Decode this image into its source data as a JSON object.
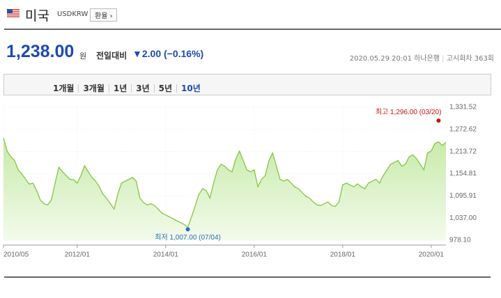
{
  "header": {
    "name": "미국",
    "code": "USDKRW",
    "button": "환율"
  },
  "quote": {
    "price": "1,238.00",
    "unit": "원",
    "change_label": "전일대비",
    "change": "▼2.00 (−0.16%)"
  },
  "meta": {
    "datetime": "2020.05.29 20:01",
    "bank": "하나은행",
    "round": "고시회차 363회"
  },
  "tabs": [
    "1개월",
    "3개월",
    "1년",
    "3년",
    "5년",
    "10년"
  ],
  "selected_tab": 5,
  "chart_data": {
    "type": "area",
    "x": [
      "2010/05",
      "2010/06",
      "2010/07",
      "2010/08",
      "2010/09",
      "2010/10",
      "2010/11",
      "2010/12",
      "2011/01",
      "2011/02",
      "2011/03",
      "2011/04",
      "2011/05",
      "2011/06",
      "2011/07",
      "2011/08",
      "2011/09",
      "2011/10",
      "2011/11",
      "2011/12",
      "2012/01",
      "2012/02",
      "2012/03",
      "2012/04",
      "2012/05",
      "2012/06",
      "2012/07",
      "2012/08",
      "2012/09",
      "2012/10",
      "2012/11",
      "2012/12",
      "2013/01",
      "2013/02",
      "2013/03",
      "2013/04",
      "2013/05",
      "2013/06",
      "2013/07",
      "2013/08",
      "2013/09",
      "2013/10",
      "2013/11",
      "2013/12",
      "2014/01",
      "2014/02",
      "2014/03",
      "2014/04",
      "2014/05",
      "2014/06",
      "2014/07",
      "2014/08",
      "2014/09",
      "2014/10",
      "2014/11",
      "2014/12",
      "2015/01",
      "2015/02",
      "2015/03",
      "2015/04",
      "2015/05",
      "2015/06",
      "2015/07",
      "2015/08",
      "2015/09",
      "2015/10",
      "2015/11",
      "2015/12",
      "2016/01",
      "2016/02",
      "2016/03",
      "2016/04",
      "2016/05",
      "2016/06",
      "2016/07",
      "2016/08",
      "2016/09",
      "2016/10",
      "2016/11",
      "2016/12",
      "2017/01",
      "2017/02",
      "2017/03",
      "2017/04",
      "2017/05",
      "2017/06",
      "2017/07",
      "2017/08",
      "2017/09",
      "2017/10",
      "2017/11",
      "2017/12",
      "2018/01",
      "2018/02",
      "2018/03",
      "2018/04",
      "2018/05",
      "2018/06",
      "2018/07",
      "2018/08",
      "2018/09",
      "2018/10",
      "2018/11",
      "2018/12",
      "2019/01",
      "2019/02",
      "2019/03",
      "2019/04",
      "2019/05",
      "2019/06",
      "2019/07",
      "2019/08",
      "2019/09",
      "2019/10",
      "2019/11",
      "2019/12",
      "2020/01",
      "2020/02",
      "2020/03",
      "2020/04",
      "2020/05"
    ],
    "series": [
      {
        "color": "#84c743",
        "values": [
          1250,
          1215,
          1200,
          1190,
          1165,
          1154,
          1140,
          1127,
          1130,
          1110,
          1085,
          1075,
          1072,
          1085,
          1130,
          1172,
          1160,
          1150,
          1140,
          1139,
          1130,
          1150,
          1176,
          1160,
          1145,
          1135,
          1120,
          1100,
          1089,
          1075,
          1061,
          1100,
          1130,
          1135,
          1140,
          1145,
          1135,
          1090,
          1078,
          1072,
          1075,
          1070,
          1060,
          1050,
          1045,
          1040,
          1035,
          1030,
          1025,
          1020,
          1012,
          1040,
          1070,
          1100,
          1115,
          1110,
          1090,
          1130,
          1165,
          1180,
          1175,
          1165,
          1160,
          1195,
          1215,
          1190,
          1165,
          1160,
          1165,
          1120,
          1140,
          1150,
          1190,
          1210,
          1175,
          1140,
          1135,
          1140,
          1130,
          1120,
          1115,
          1105,
          1095,
          1090,
          1080,
          1072,
          1070,
          1075,
          1080,
          1070,
          1068,
          1080,
          1125,
          1130,
          1125,
          1120,
          1128,
          1120,
          1115,
          1130,
          1135,
          1140,
          1130,
          1150,
          1165,
          1180,
          1185,
          1190,
          1175,
          1180,
          1200,
          1205,
          1195,
          1180,
          1165,
          1210,
          1215,
          1235,
          1240,
          1230,
          1238
        ]
      }
    ],
    "ylim": [
      978.1,
      1331.52
    ],
    "yticks": [
      {
        "value": 1331.52,
        "label": "1,331.52"
      },
      {
        "value": 1272.62,
        "label": "1,272.62"
      },
      {
        "value": 1213.72,
        "label": "1,213.72"
      },
      {
        "value": 1154.81,
        "label": "1,154.81"
      },
      {
        "value": 1095.91,
        "label": "1,095.91"
      },
      {
        "value": 1037.0,
        "label": "1,037.00"
      },
      {
        "value": 978.1,
        "label": "978.10"
      }
    ],
    "xticks": [
      "2010/05",
      "2012/01",
      "2014/01",
      "2016/01",
      "2018/01",
      "2020/01"
    ],
    "grid": true,
    "annotations": [
      {
        "text": "최고 1,296.00 (03/20)",
        "x": "2020/03",
        "value": 1296.0,
        "color": "#cc1111"
      },
      {
        "text": "최저 1,007.00 (07/04)",
        "x": "2014/07",
        "value": 1007.0,
        "color": "#2a6fc0"
      }
    ]
  }
}
